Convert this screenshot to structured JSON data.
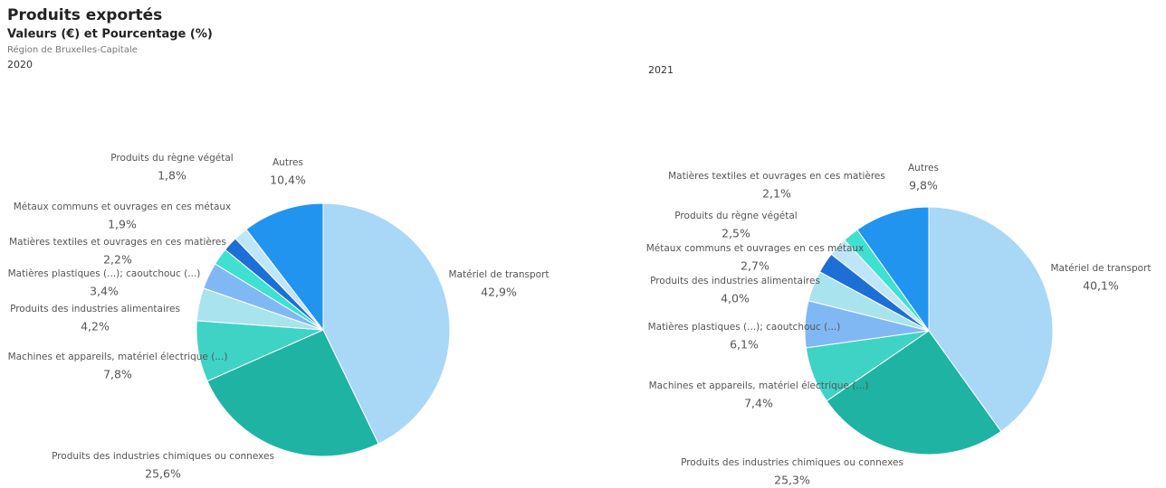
{
  "header": {
    "title": "Produits exportés",
    "subtitle": "Valeurs (€) et Pourcentage (%)",
    "region": "Région de Bruxelles-Capitale"
  },
  "chart_data": [
    {
      "type": "pie",
      "title": "2020",
      "categories": [
        "Matériel de transport",
        "Produits des industries chimiques ou connexes",
        "Machines et appareils, matériel électrique (...)",
        "Produits des industries alimentaires",
        "Matières plastiques (...); caoutchouc (...)",
        "Matières textiles et ouvrages en ces matières",
        "Métaux communs et ouvrages en ces métaux",
        "Produits du règne végétal",
        "Autres"
      ],
      "values": [
        42.9,
        25.6,
        7.8,
        4.2,
        3.4,
        2.2,
        1.9,
        1.8,
        10.4
      ],
      "value_labels": [
        "42,9%",
        "25,6%",
        "7,8%",
        "4,2%",
        "3,4%",
        "2,2%",
        "1,9%",
        "1,8%",
        "10,4%"
      ],
      "colors": [
        "#a9d7f6",
        "#1fb3a3",
        "#3fd3c6",
        "#a8e3ee",
        "#80b8f4",
        "#3fe0d2",
        "#1e6fd5",
        "#bfe6f8",
        "#2194f0"
      ]
    },
    {
      "type": "pie",
      "title": "2021",
      "categories": [
        "Matériel de transport",
        "Produits des industries chimiques ou connexes",
        "Machines et appareils, matériel électrique (...)",
        "Matières plastiques (...); caoutchouc (...)",
        "Produits des industries alimentaires",
        "Métaux communs et ouvrages en ces métaux",
        "Produits du règne végétal",
        "Matières textiles et ouvrages en ces matières",
        "Autres"
      ],
      "values": [
        40.1,
        25.3,
        7.4,
        6.1,
        4.0,
        2.7,
        2.5,
        2.1,
        9.8
      ],
      "value_labels": [
        "40,1%",
        "25,3%",
        "7,4%",
        "6,1%",
        "4,0%",
        "2,7%",
        "2,5%",
        "2,1%",
        "9,8%"
      ],
      "colors": [
        "#a9d7f6",
        "#1fb3a3",
        "#3fd3c6",
        "#80b8f4",
        "#a8e3ee",
        "#1e6fd5",
        "#bfe6f8",
        "#3fe0d2",
        "#2194f0"
      ]
    }
  ]
}
